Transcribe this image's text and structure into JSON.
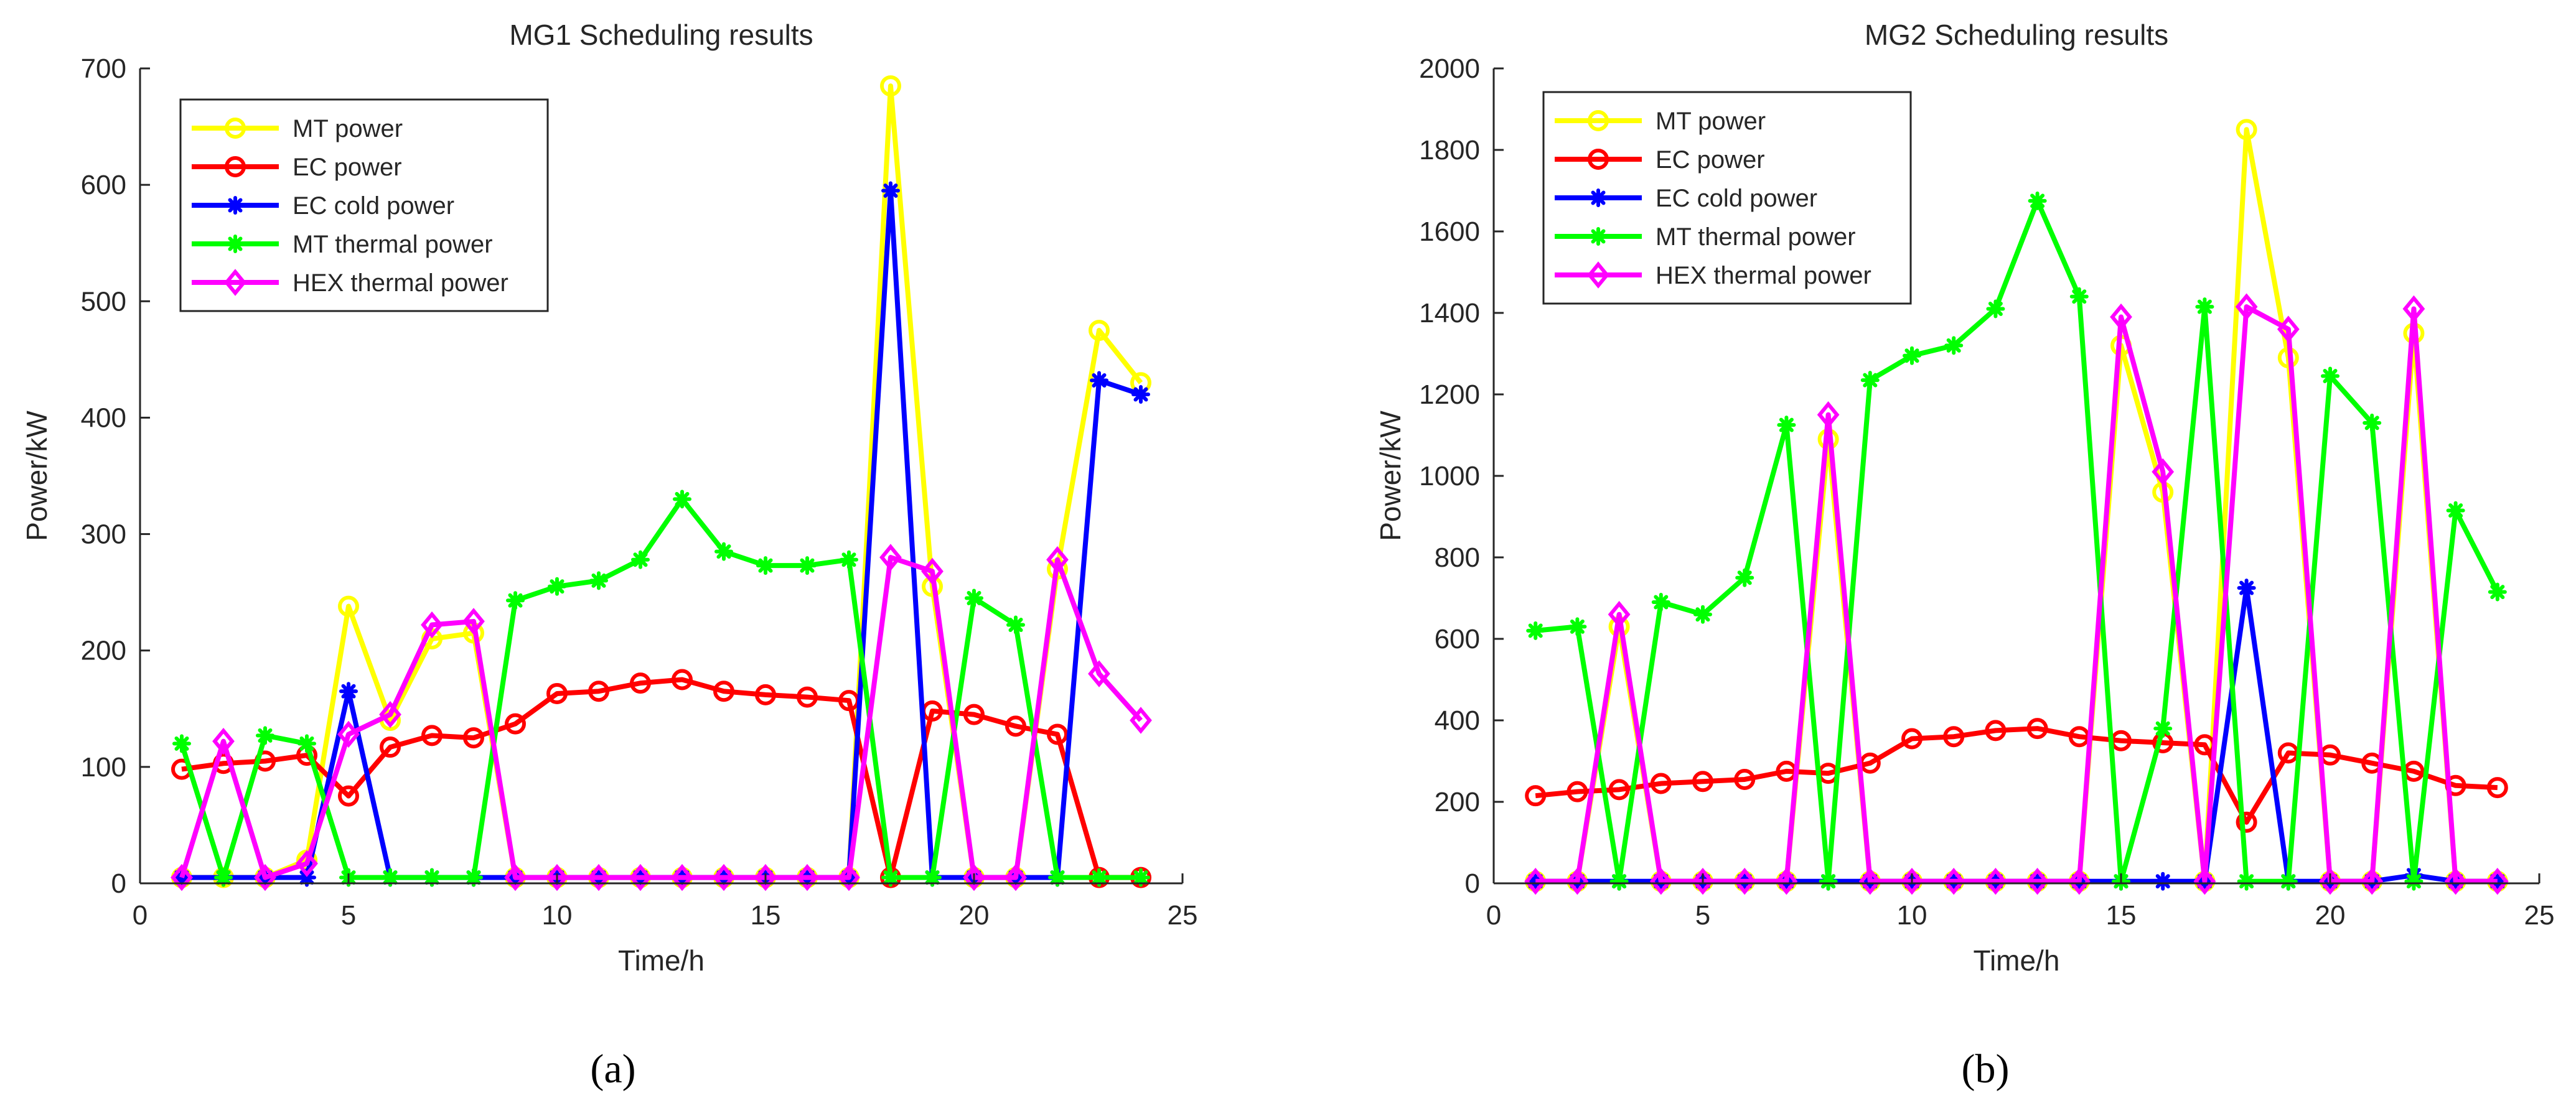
{
  "figure": {
    "panel_labels": [
      "(a)",
      "(b)"
    ]
  },
  "legend_icons": {
    "MT power": "open-circle-marker",
    "EC power": "open-circle-marker",
    "EC cold power": "asterisk-marker",
    "MT thermal power": "asterisk-marker",
    "HEX thermal power": "open-diamond-marker"
  },
  "chart_data": [
    {
      "type": "line",
      "title": "MG1 Scheduling results",
      "xlabel": "Time/h",
      "ylabel": "Power/kW",
      "xlim": [
        0,
        25
      ],
      "ylim": [
        0,
        700
      ],
      "xticks": [
        0,
        5,
        10,
        15,
        20,
        25
      ],
      "yticks": [
        0,
        100,
        200,
        300,
        400,
        500,
        600,
        700
      ],
      "grid": false,
      "legend_position": "top-left",
      "x": [
        1,
        2,
        3,
        4,
        5,
        6,
        7,
        8,
        9,
        10,
        11,
        12,
        13,
        14,
        15,
        16,
        17,
        18,
        19,
        20,
        21,
        22,
        23,
        24
      ],
      "series": [
        {
          "name": "MT power",
          "color": "#ffff00",
          "marker": "circle",
          "values": [
            5,
            5,
            5,
            20,
            238,
            140,
            210,
            215,
            5,
            5,
            5,
            5,
            5,
            5,
            5,
            5,
            5,
            685,
            255,
            5,
            5,
            270,
            475,
            430
          ]
        },
        {
          "name": "EC power",
          "color": "#ff0000",
          "marker": "circle",
          "values": [
            98,
            103,
            105,
            110,
            75,
            117,
            127,
            125,
            137,
            163,
            165,
            172,
            175,
            165,
            162,
            160,
            157,
            5,
            148,
            145,
            135,
            128,
            5,
            5
          ]
        },
        {
          "name": "EC cold power",
          "color": "#0000ff",
          "marker": "asterisk",
          "values": [
            5,
            5,
            5,
            5,
            165,
            5,
            5,
            5,
            5,
            5,
            5,
            5,
            5,
            5,
            5,
            5,
            5,
            595,
            5,
            5,
            5,
            5,
            432,
            420
          ]
        },
        {
          "name": "MT thermal power",
          "color": "#00ff00",
          "marker": "asterisk",
          "values": [
            120,
            5,
            127,
            120,
            5,
            5,
            5,
            5,
            243,
            255,
            260,
            278,
            330,
            285,
            273,
            273,
            278,
            5,
            5,
            245,
            222,
            5,
            5,
            5
          ]
        },
        {
          "name": "HEX thermal power",
          "color": "#ff00ff",
          "marker": "diamond",
          "values": [
            5,
            122,
            5,
            17,
            128,
            145,
            222,
            225,
            5,
            5,
            5,
            5,
            5,
            5,
            5,
            5,
            5,
            280,
            268,
            5,
            5,
            278,
            180,
            140
          ]
        }
      ]
    },
    {
      "type": "line",
      "title": "MG2 Scheduling results",
      "xlabel": "Time/h",
      "ylabel": "Power/kW",
      "xlim": [
        0,
        25
      ],
      "ylim": [
        0,
        2000
      ],
      "xticks": [
        0,
        5,
        10,
        15,
        20,
        25
      ],
      "yticks": [
        0,
        200,
        400,
        600,
        800,
        1000,
        1200,
        1400,
        1600,
        1800,
        2000
      ],
      "grid": false,
      "legend_position": "top-left",
      "x": [
        1,
        2,
        3,
        4,
        5,
        6,
        7,
        8,
        9,
        10,
        11,
        12,
        13,
        14,
        15,
        16,
        17,
        18,
        19,
        20,
        21,
        22,
        23,
        24
      ],
      "series": [
        {
          "name": "MT power",
          "color": "#ffff00",
          "marker": "circle",
          "values": [
            5,
            5,
            630,
            5,
            5,
            5,
            5,
            1090,
            5,
            5,
            5,
            5,
            5,
            5,
            1320,
            960,
            5,
            1850,
            1290,
            5,
            5,
            1350,
            5,
            5
          ]
        },
        {
          "name": "EC power",
          "color": "#ff0000",
          "marker": "circle",
          "values": [
            215,
            225,
            230,
            245,
            250,
            255,
            275,
            270,
            295,
            355,
            360,
            375,
            380,
            360,
            350,
            345,
            340,
            150,
            320,
            315,
            295,
            275,
            240,
            235
          ]
        },
        {
          "name": "EC cold power",
          "color": "#0000ff",
          "marker": "asterisk",
          "values": [
            5,
            5,
            5,
            5,
            5,
            5,
            5,
            5,
            5,
            5,
            5,
            5,
            5,
            5,
            5,
            5,
            5,
            725,
            5,
            5,
            5,
            20,
            5,
            5
          ]
        },
        {
          "name": "MT thermal power",
          "color": "#00ff00",
          "marker": "asterisk",
          "values": [
            620,
            630,
            5,
            690,
            660,
            750,
            1125,
            5,
            1235,
            1295,
            1320,
            1410,
            1675,
            1440,
            5,
            380,
            1415,
            5,
            5,
            1245,
            1130,
            5,
            915,
            715
          ]
        },
        {
          "name": "HEX thermal power",
          "color": "#ff00ff",
          "marker": "diamond",
          "values": [
            5,
            5,
            660,
            5,
            5,
            5,
            5,
            1150,
            5,
            5,
            5,
            5,
            5,
            5,
            1390,
            1010,
            5,
            1415,
            1360,
            5,
            5,
            1410,
            5,
            5
          ]
        }
      ]
    }
  ]
}
